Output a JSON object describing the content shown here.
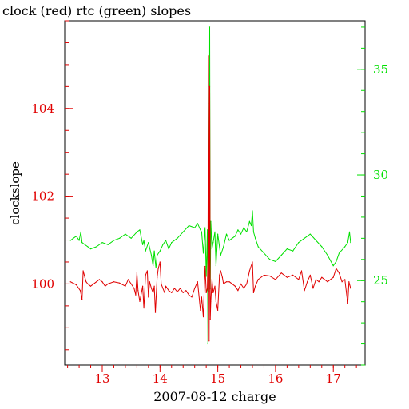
{
  "chart_data": {
    "type": "line",
    "title": "clock (red) rtc (green) slopes",
    "xlabel": "2007-08-12 charge",
    "ylabel_left": "clockslope",
    "ylabel_right": "",
    "colors": {
      "left": "#e00000",
      "right": "#00e000",
      "axis": "#000000",
      "overlap": "#707000"
    },
    "x_axis": {
      "range": [
        12.35,
        17.55
      ],
      "major_ticks": [
        13,
        14,
        15,
        16,
        17
      ],
      "tick_labels": [
        "13",
        "14",
        "15",
        "16",
        "17"
      ],
      "minor_step": 0.2
    },
    "y_left": {
      "range": [
        98.15,
        106.0
      ],
      "major_ticks": [
        100,
        102,
        104
      ],
      "tick_labels": [
        "100",
        "102",
        "104"
      ],
      "minor_step": 0.5
    },
    "y_right": {
      "range": [
        21.0,
        37.3
      ],
      "major_ticks": [
        25,
        30,
        35
      ],
      "tick_labels": [
        "25",
        "30",
        "35"
      ],
      "minor_step": 1
    },
    "series": [
      {
        "name": "clock",
        "axis": "left",
        "x": [
          12.45,
          12.55,
          12.62,
          12.65,
          12.67,
          12.7,
          12.72,
          12.75,
          12.8,
          12.9,
          12.95,
          13.0,
          13.05,
          13.1,
          13.2,
          13.3,
          13.4,
          13.45,
          13.5,
          13.55,
          13.58,
          13.6,
          13.62,
          13.65,
          13.7,
          13.72,
          13.75,
          13.78,
          13.8,
          13.82,
          13.85,
          13.88,
          13.9,
          13.92,
          13.95,
          13.97,
          14.0,
          14.02,
          14.05,
          14.08,
          14.1,
          14.15,
          14.2,
          14.25,
          14.3,
          14.35,
          14.4,
          14.45,
          14.5,
          14.55,
          14.6,
          14.65,
          14.7,
          14.72,
          14.75,
          14.78,
          14.8,
          14.82,
          14.83,
          14.84,
          14.85,
          14.86,
          14.87,
          14.88,
          14.9,
          14.92,
          14.95,
          14.97,
          15.0,
          15.03,
          15.05,
          15.08,
          15.1,
          15.15,
          15.2,
          15.3,
          15.35,
          15.4,
          15.45,
          15.5,
          15.55,
          15.6,
          15.62,
          15.65,
          15.7,
          15.8,
          15.9,
          16.0,
          16.1,
          16.2,
          16.3,
          16.4,
          16.45,
          16.5,
          16.55,
          16.6,
          16.65,
          16.7,
          16.75,
          16.8,
          16.9,
          17.0,
          17.05,
          17.1,
          17.15,
          17.2,
          17.25,
          17.27,
          17.3
        ],
        "y": [
          100.05,
          99.98,
          99.85,
          99.65,
          100.3,
          100.15,
          100.05,
          100.0,
          99.95,
          100.05,
          100.1,
          100.05,
          99.95,
          100.0,
          100.05,
          100.02,
          99.95,
          100.1,
          100.0,
          99.9,
          99.75,
          100.25,
          99.85,
          99.6,
          99.95,
          99.45,
          100.2,
          100.3,
          99.7,
          100.05,
          99.9,
          99.8,
          99.95,
          99.35,
          100.15,
          100.35,
          100.5,
          100.0,
          99.9,
          99.8,
          99.95,
          99.85,
          99.8,
          99.9,
          99.82,
          99.9,
          99.8,
          99.85,
          99.75,
          99.7,
          99.9,
          100.05,
          99.4,
          99.7,
          99.25,
          100.4,
          99.8,
          99.9,
          100.6,
          105.2,
          98.7,
          104.5,
          99.2,
          99.6,
          100.1,
          99.8,
          99.95,
          99.6,
          99.4,
          100.2,
          100.3,
          100.15,
          100.0,
          100.05,
          100.05,
          99.95,
          99.85,
          100.0,
          99.9,
          100.0,
          100.3,
          100.5,
          99.8,
          99.95,
          100.1,
          100.2,
          100.18,
          100.1,
          100.25,
          100.15,
          100.2,
          100.1,
          100.3,
          99.85,
          100.05,
          100.2,
          99.9,
          100.1,
          100.05,
          100.15,
          100.05,
          100.15,
          100.35,
          100.25,
          100.05,
          100.1,
          99.55,
          100.05,
          99.9
        ]
      },
      {
        "name": "rtc",
        "axis": "right",
        "x": [
          12.45,
          12.5,
          12.55,
          12.6,
          12.63,
          12.65,
          12.7,
          12.75,
          12.8,
          12.9,
          13.0,
          13.1,
          13.2,
          13.3,
          13.4,
          13.5,
          13.6,
          13.65,
          13.7,
          13.72,
          13.75,
          13.8,
          13.85,
          13.88,
          13.9,
          13.93,
          13.95,
          14.0,
          14.05,
          14.1,
          14.15,
          14.2,
          14.3,
          14.4,
          14.5,
          14.6,
          14.65,
          14.7,
          14.72,
          14.75,
          14.78,
          14.8,
          14.82,
          14.83,
          14.84,
          14.85,
          14.86,
          14.87,
          14.88,
          14.9,
          14.92,
          14.95,
          14.97,
          15.0,
          15.05,
          15.1,
          15.15,
          15.2,
          15.25,
          15.3,
          15.35,
          15.4,
          15.45,
          15.5,
          15.55,
          15.58,
          15.6,
          15.62,
          15.65,
          15.7,
          15.8,
          15.9,
          16.0,
          16.1,
          16.2,
          16.3,
          16.4,
          16.5,
          16.6,
          16.7,
          16.8,
          16.9,
          17.0,
          17.05,
          17.1,
          17.2,
          17.25,
          17.28,
          17.3
        ],
        "y": [
          26.9,
          27.0,
          27.1,
          26.9,
          27.3,
          26.8,
          26.7,
          26.6,
          26.5,
          26.6,
          26.8,
          26.7,
          26.9,
          27.0,
          27.2,
          27.0,
          27.3,
          27.4,
          26.7,
          26.9,
          26.4,
          26.8,
          26.2,
          25.7,
          26.4,
          25.6,
          26.2,
          26.4,
          26.7,
          26.9,
          26.5,
          26.8,
          27.0,
          27.3,
          27.6,
          27.5,
          27.7,
          27.4,
          27.3,
          26.3,
          27.5,
          25.2,
          27.4,
          22.0,
          33.4,
          24.5,
          37.0,
          24.6,
          27.8,
          26.5,
          26.8,
          27.3,
          25.7,
          27.2,
          26.2,
          26.6,
          27.2,
          26.9,
          27.0,
          27.1,
          27.4,
          27.2,
          27.5,
          27.3,
          27.8,
          27.6,
          28.3,
          27.3,
          27.0,
          26.6,
          26.3,
          26.0,
          25.9,
          26.2,
          26.5,
          26.4,
          26.8,
          27.0,
          27.2,
          26.9,
          26.6,
          26.2,
          25.7,
          25.9,
          26.3,
          26.6,
          26.8,
          27.3,
          26.8
        ]
      }
    ]
  }
}
